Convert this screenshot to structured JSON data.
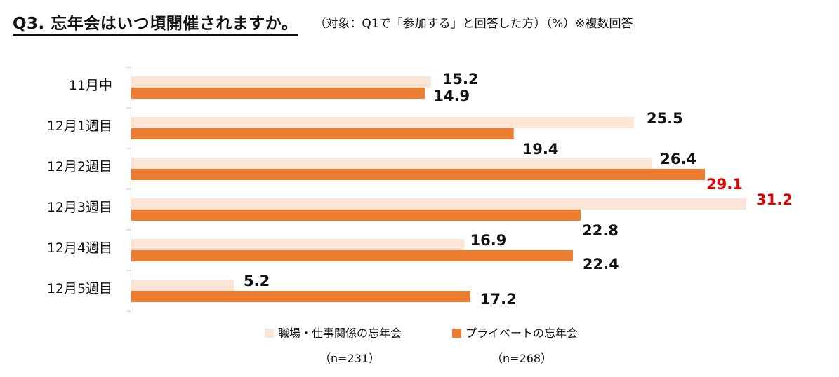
{
  "header": {
    "title": "Q3. 忘年会はいつ頃開催されますか。",
    "subtitle": "（対象：Q1で「参加する」と回答した方）（%）※複数回答"
  },
  "colors": {
    "series1": "#FBE5D6",
    "series2": "#ED7D31",
    "highlight": "#E00000",
    "label": "#111111",
    "axis": "#BFBFBF"
  },
  "chart_data": {
    "type": "bar",
    "orientation": "horizontal",
    "categories": [
      "11月中",
      "12月1週目",
      "12月2週目",
      "12月3週目",
      "12月4週目",
      "12月5週目"
    ],
    "series": [
      {
        "name": "職場・仕事関係の忘年会",
        "n": "（n=231）",
        "values": [
          15.2,
          25.5,
          26.4,
          31.2,
          16.9,
          5.2
        ],
        "highlight": [
          false,
          false,
          false,
          true,
          false,
          false
        ]
      },
      {
        "name": "プライベートの忘年会",
        "n": "（n=268）",
        "values": [
          14.9,
          19.4,
          29.1,
          22.8,
          22.4,
          17.2
        ],
        "highlight": [
          false,
          false,
          true,
          false,
          false,
          false
        ]
      }
    ],
    "xlim": [
      0,
      31.2
    ],
    "legend_position": "bottom"
  }
}
